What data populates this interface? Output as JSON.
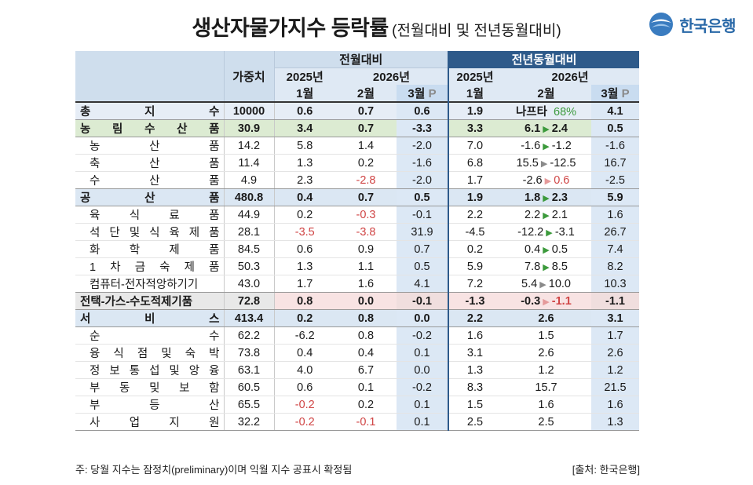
{
  "title": {
    "main": "생산자물가지수 등락률",
    "sub": "(전월대비 및 전년동월대비)"
  },
  "logo": {
    "text": "한국은행",
    "icon": "bok-logo-icon"
  },
  "header": {
    "weight": "가중치",
    "mom": "전월대비",
    "yoy": "전년동월대비",
    "y2025": "2025년",
    "y2026": "2026년",
    "m1": "1월",
    "m2": "2월",
    "m3": "3월",
    "p": "P"
  },
  "rows": [
    {
      "name": "총 지 수",
      "weight": "10000",
      "mom": [
        "0.6",
        "0.7",
        "0.6"
      ],
      "yoy_jan": "1.9",
      "yoy_feb": "나프타",
      "yoy_feb_extra": "68%",
      "yoy_mar": "4.1"
    },
    {
      "name": "농 림 수 산 품",
      "weight": "30.9",
      "mom": [
        "3.4",
        "0.7",
        "-3.3"
      ],
      "yoy_jan": "3.3",
      "yoy_feb": "6.1",
      "yoy_feb_to": "2.4",
      "yoy_mar": "0.5"
    },
    {
      "name": "농 산 품",
      "weight": "14.2",
      "mom": [
        "5.8",
        "1.4",
        "-2.0"
      ],
      "yoy_jan": "7.0",
      "yoy_feb": "-1.6",
      "yoy_feb_to": "-1.2",
      "yoy_mar": "-1.6"
    },
    {
      "name": "축 산 품",
      "weight": "11.4",
      "mom": [
        "1.3",
        "0.2",
        "-1.6"
      ],
      "yoy_jan": "6.8",
      "yoy_feb": "15.5",
      "yoy_feb_to": "-12.5",
      "yoy_mar": "16.7"
    },
    {
      "name": "수 산 품",
      "weight": "4.9",
      "mom": [
        "2.3",
        "-2.8",
        "-2.0"
      ],
      "yoy_jan": "1.7",
      "yoy_feb": "-2.6",
      "yoy_feb_to": "0.6",
      "yoy_mar": "-2.5"
    },
    {
      "name": "공 산 품",
      "weight": "480.8",
      "mom": [
        "0.4",
        "0.7",
        "0.5"
      ],
      "yoy_jan": "1.9",
      "yoy_feb": "1.8",
      "yoy_feb_to": "2.3",
      "yoy_mar": "5.9"
    },
    {
      "name": "육 식 료 품",
      "weight": "44.9",
      "mom": [
        "0.2",
        "-0.3",
        "-0.1"
      ],
      "yoy_jan": "2.2",
      "yoy_feb": "2.2",
      "yoy_feb_to": "2.1",
      "yoy_mar": "1.6"
    },
    {
      "name": "석 단 및 식 육 제 품",
      "weight": "28.1",
      "mom": [
        "-3.5",
        "-3.8",
        "31.9"
      ],
      "yoy_jan": "-4.5",
      "yoy_feb": "-12.2",
      "yoy_feb_to": "-3.1",
      "yoy_mar": "26.7"
    },
    {
      "name": "화 학 제 품",
      "weight": "84.5",
      "mom": [
        "0.6",
        "0.9",
        "0.7"
      ],
      "yoy_jan": "0.2",
      "yoy_feb": "0.4",
      "yoy_feb_to": "0.5",
      "yoy_mar": "7.4"
    },
    {
      "name": "1 차 금 숙 제 품",
      "weight": "50.3",
      "mom": [
        "1.3",
        "1.1",
        "0.5"
      ],
      "yoy_jan": "5.9",
      "yoy_feb": "7.8",
      "yoy_feb_to": "8.5",
      "yoy_mar": "8.2"
    },
    {
      "name": "컴퓨터-전자적앙하기기",
      "weight": "43.0",
      "mom": [
        "1.7",
        "1.6",
        "4.1"
      ],
      "yoy_jan": "7.2",
      "yoy_feb": "5.4",
      "yoy_feb_to": "10.0",
      "yoy_mar": "10.3"
    },
    {
      "name": "전택-가스-수도적제기품",
      "weight": "72.8",
      "mom": [
        "0.8",
        "0.0",
        "-0.1"
      ],
      "yoy_jan": "-1.3",
      "yoy_feb": "-0.3",
      "yoy_feb_to": "-1.1",
      "yoy_mar": "-1.1"
    },
    {
      "name": "서 비 스",
      "weight": "413.4",
      "mom": [
        "0.2",
        "0.8",
        "0.0"
      ],
      "yoy_jan": "2.2",
      "yoy_feb": "2.6",
      "yoy_mar": "3.1"
    },
    {
      "name": "순 수",
      "weight": "62.2",
      "mom": [
        "-6.2",
        "0.8",
        "-0.2"
      ],
      "yoy_jan": "1.6",
      "yoy_feb": "1.5",
      "yoy_mar": "1.7"
    },
    {
      "name": "융 식 점 및 숙 박",
      "weight": "73.8",
      "mom": [
        "0.4",
        "0.4",
        "0.1"
      ],
      "yoy_jan": "3.1",
      "yoy_feb": "2.6",
      "yoy_mar": "2.6"
    },
    {
      "name": "정 보 통 섭 및 앙 융",
      "weight": "63.1",
      "mom": [
        "4.0",
        "6.7",
        "0.0"
      ],
      "yoy_jan": "1.3",
      "yoy_feb": "1.2",
      "yoy_mar": "1.2"
    },
    {
      "name": "부 동 및 보 함",
      "weight": "60.5",
      "mom": [
        "0.6",
        "0.1",
        "-0.2"
      ],
      "yoy_jan": "8.3",
      "yoy_feb": "15.7",
      "yoy_mar": "21.5"
    },
    {
      "name": "부 등 산",
      "weight": "65.5",
      "mom": [
        "-0.2",
        "0.2",
        "0.1"
      ],
      "yoy_jan": "1.5",
      "yoy_feb": "1.6",
      "yoy_mar": "1.6"
    },
    {
      "name": "사 업 지 원",
      "weight": "32.2",
      "mom": [
        "-0.2",
        "-0.1",
        "0.1"
      ],
      "yoy_jan": "2.5",
      "yoy_feb": "2.5",
      "yoy_mar": "1.3"
    }
  ],
  "footnote": "주: 당월 지수는 잠정치(preliminary)이며 익월 지수 공표시 확정됨",
  "source": "[출처: 한국은행]",
  "colors": {
    "header_dark": "#2e5a8a",
    "header_light": "#cfdeed",
    "negative": "#d04545",
    "arrow_green": "#3c9a3c"
  }
}
